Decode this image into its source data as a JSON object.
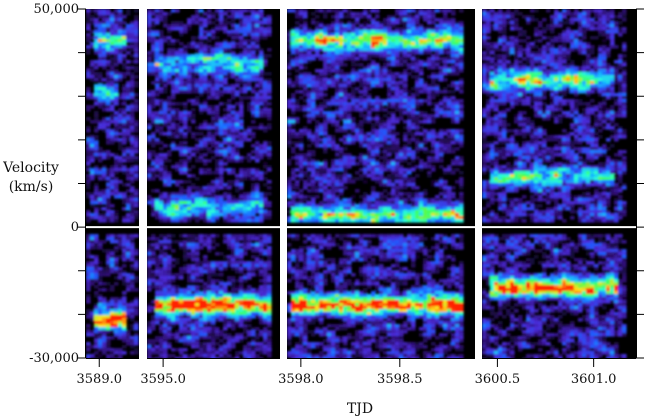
{
  "chart_data": {
    "type": "heatmap",
    "title": "",
    "xlabel": "TJD",
    "ylabel_line1": "Velocity",
    "ylabel_line2": "(km/s)",
    "ylim": [
      -30000,
      50000
    ],
    "y_ticks": [
      {
        "value": 50000,
        "label": "50,000"
      },
      {
        "value": 0,
        "label": "0"
      },
      {
        "value": -30000,
        "label": "-30,000"
      }
    ],
    "zero_line": 0,
    "colormap": [
      "#000000",
      "#2a0d66",
      "#4b2ad6",
      "#1f5cff",
      "#19b8ff",
      "#2affd6",
      "#3dff55",
      "#ffe21a",
      "#ff2400"
    ],
    "panels": [
      {
        "name": "panel-1",
        "xlim": [
          3588.85,
          3589.45
        ],
        "x_ticks": [
          {
            "value": 3589.0,
            "label": "3589.0"
          }
        ],
        "features": [
          {
            "v": -21000,
            "x_range": [
              3588.9,
              3589.3
            ],
            "intensity": 1.0
          },
          {
            "v": 43000,
            "x_range": [
              3588.9,
              3589.3
            ],
            "intensity": 0.6
          },
          {
            "v": 32000,
            "x_range": [
              3588.9,
              3589.2
            ],
            "intensity": 0.45
          }
        ]
      },
      {
        "name": "panel-2",
        "xlim": [
          3594.6,
          3597.9
        ],
        "x_ticks": [
          {
            "value": 3595.0,
            "label": "3595.0"
          }
        ],
        "features": [
          {
            "v": -17500,
            "x_range": [
              3594.7,
              3597.6
            ],
            "intensity": 0.95
          },
          {
            "v": 38000,
            "x_range": [
              3594.7,
              3597.4
            ],
            "intensity": 0.45
          },
          {
            "v": 5000,
            "x_range": [
              3594.7,
              3597.4
            ],
            "intensity": 0.45
          }
        ]
      },
      {
        "name": "panel-3",
        "xlim": [
          3597.93,
          3598.88
        ],
        "x_ticks": [
          {
            "value": 3598.0,
            "label": "3598.0"
          },
          {
            "value": 3598.5,
            "label": "3598.5"
          }
        ],
        "features": [
          {
            "v": -17500,
            "x_range": [
              3597.95,
              3598.88
            ],
            "intensity": 1.0
          },
          {
            "v": 43000,
            "x_range": [
              3597.95,
              3598.8
            ],
            "intensity": 0.7
          },
          {
            "v": 3000,
            "x_range": [
              3597.95,
              3598.88
            ],
            "intensity": 0.6
          }
        ]
      },
      {
        "name": "panel-4",
        "xlim": [
          3600.42,
          3601.22
        ],
        "x_ticks": [
          {
            "value": 3600.5,
            "label": "3600.5"
          },
          {
            "value": 3601.0,
            "label": "3601.0"
          }
        ],
        "features": [
          {
            "v": -13500,
            "x_range": [
              3600.45,
              3601.12
            ],
            "intensity": 0.95
          },
          {
            "v": 34000,
            "x_range": [
              3600.45,
              3601.1
            ],
            "intensity": 0.6
          },
          {
            "v": 12000,
            "x_range": [
              3600.45,
              3601.1
            ],
            "intensity": 0.5
          }
        ]
      }
    ]
  }
}
